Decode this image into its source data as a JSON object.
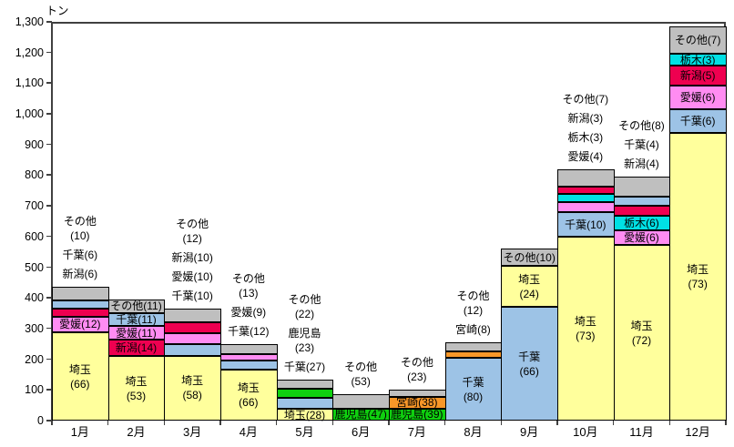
{
  "chart_data": {
    "type": "bar",
    "subtype": "stacked",
    "title": "",
    "unit_label": "トン",
    "xlabel": "",
    "ylabel": "",
    "ylim": [
      0,
      1300
    ],
    "ytick_step": 100,
    "ytick_labels": [
      "0",
      "100",
      "200",
      "300",
      "400",
      "500",
      "600",
      "700",
      "800",
      "900",
      "1,000",
      "1,100",
      "1,200",
      "1,300"
    ],
    "grid": false,
    "legend": "none",
    "note": "segment labels show percent share of monthly total; bar height is total tons (estimated from axis)",
    "categories": [
      "1月",
      "2月",
      "3月",
      "4月",
      "5月",
      "6月",
      "7月",
      "8月",
      "9月",
      "10月",
      "11月",
      "12月"
    ],
    "colors": {
      "埼玉": "#ffff9c",
      "千葉": "#9dc3e6",
      "新潟": "#ee0050",
      "愛媛": "#ff8cf2",
      "栃木": "#00e0e4",
      "鹿児島": "#0fd00f",
      "宮崎": "#f89728",
      "その他": "#bfbfbf"
    },
    "months": [
      {
        "category": "1月",
        "total_tons": 435,
        "segments": [
          {
            "name": "埼玉",
            "pct": 66,
            "lines": [
              "埼玉",
              "(66)"
            ],
            "placement": "inside"
          },
          {
            "name": "愛媛",
            "pct": 12,
            "lines": [
              "愛媛(12)"
            ],
            "placement": "inside"
          },
          {
            "name": "新潟",
            "pct": 6,
            "lines": [
              "新潟(6)"
            ],
            "placement": "outside"
          },
          {
            "name": "千葉",
            "pct": 6,
            "lines": [
              "千葉(6)"
            ],
            "placement": "outside"
          },
          {
            "name": "その他",
            "pct": 10,
            "lines": [
              "その他",
              "(10)"
            ],
            "placement": "outside"
          }
        ]
      },
      {
        "category": "2月",
        "total_tons": 395,
        "segments": [
          {
            "name": "埼玉",
            "pct": 53,
            "lines": [
              "埼玉",
              "(53)"
            ],
            "placement": "inside"
          },
          {
            "name": "新潟",
            "pct": 14,
            "lines": [
              "新潟(14)"
            ],
            "placement": "inside"
          },
          {
            "name": "愛媛",
            "pct": 11,
            "lines": [
              "愛媛(11)"
            ],
            "placement": "inside"
          },
          {
            "name": "千葉",
            "pct": 11,
            "lines": [
              "千葉(11)"
            ],
            "placement": "inside"
          },
          {
            "name": "その他",
            "pct": 11,
            "lines": [
              "その他(11)"
            ],
            "placement": "inside"
          }
        ]
      },
      {
        "category": "3月",
        "total_tons": 365,
        "segments": [
          {
            "name": "埼玉",
            "pct": 58,
            "lines": [
              "埼玉",
              "(58)"
            ],
            "placement": "inside"
          },
          {
            "name": "千葉",
            "pct": 10,
            "lines": [
              "千葉(10)"
            ],
            "placement": "outside"
          },
          {
            "name": "愛媛",
            "pct": 10,
            "lines": [
              "愛媛(10)"
            ],
            "placement": "outside"
          },
          {
            "name": "新潟",
            "pct": 10,
            "lines": [
              "新潟(10)"
            ],
            "placement": "outside"
          },
          {
            "name": "その他",
            "pct": 12,
            "lines": [
              "その他",
              "(12)"
            ],
            "placement": "outside"
          }
        ]
      },
      {
        "category": "4月",
        "total_tons": 250,
        "segments": [
          {
            "name": "埼玉",
            "pct": 66,
            "lines": [
              "埼玉",
              "(66)"
            ],
            "placement": "inside"
          },
          {
            "name": "千葉",
            "pct": 12,
            "lines": [
              "千葉(12)"
            ],
            "placement": "outside"
          },
          {
            "name": "愛媛",
            "pct": 9,
            "lines": [
              "愛媛(9)"
            ],
            "placement": "outside"
          },
          {
            "name": "その他",
            "pct": 13,
            "lines": [
              "その他",
              "(13)"
            ],
            "placement": "outside"
          }
        ]
      },
      {
        "category": "5月",
        "total_tons": 133,
        "segments": [
          {
            "name": "埼玉",
            "pct": 28,
            "lines": [
              "埼玉(28)"
            ],
            "placement": "inside"
          },
          {
            "name": "千葉",
            "pct": 27,
            "lines": [
              "千葉(27)"
            ],
            "placement": "outside"
          },
          {
            "name": "鹿児島",
            "pct": 23,
            "lines": [
              "鹿児島",
              "(23)"
            ],
            "placement": "outside"
          },
          {
            "name": "その他",
            "pct": 22,
            "lines": [
              "その他",
              "(22)"
            ],
            "placement": "outside"
          }
        ]
      },
      {
        "category": "6月",
        "total_tons": 85,
        "segments": [
          {
            "name": "鹿児島",
            "pct": 47,
            "lines": [
              "鹿児島(47)"
            ],
            "placement": "inside"
          },
          {
            "name": "その他",
            "pct": 53,
            "lines": [
              "その他",
              "(53)"
            ],
            "placement": "outside"
          }
        ]
      },
      {
        "category": "7月",
        "total_tons": 100,
        "segments": [
          {
            "name": "鹿児島",
            "pct": 39,
            "lines": [
              "鹿児島(39)"
            ],
            "placement": "inside"
          },
          {
            "name": "宮崎",
            "pct": 38,
            "lines": [
              "宮崎(38)"
            ],
            "placement": "inside"
          },
          {
            "name": "その他",
            "pct": 23,
            "lines": [
              "その他",
              "(23)"
            ],
            "placement": "outside"
          }
        ]
      },
      {
        "category": "8月",
        "total_tons": 255,
        "segments": [
          {
            "name": "千葉",
            "pct": 80,
            "lines": [
              "千葉",
              "(80)"
            ],
            "placement": "inside"
          },
          {
            "name": "宮崎",
            "pct": 8,
            "lines": [
              "宮崎(8)"
            ],
            "placement": "outside"
          },
          {
            "name": "その他",
            "pct": 12,
            "lines": [
              "その他",
              "(12)"
            ],
            "placement": "outside"
          }
        ]
      },
      {
        "category": "9月",
        "total_tons": 560,
        "segments": [
          {
            "name": "千葉",
            "pct": 66,
            "lines": [
              "千葉",
              "(66)"
            ],
            "placement": "inside"
          },
          {
            "name": "埼玉",
            "pct": 24,
            "lines": [
              "埼玉",
              "(24)"
            ],
            "placement": "inside"
          },
          {
            "name": "その他",
            "pct": 10,
            "lines": [
              "その他(10)"
            ],
            "placement": "inside"
          }
        ]
      },
      {
        "category": "10月",
        "total_tons": 820,
        "segments": [
          {
            "name": "埼玉",
            "pct": 73,
            "lines": [
              "埼玉",
              "(73)"
            ],
            "placement": "inside"
          },
          {
            "name": "千葉",
            "pct": 10,
            "lines": [
              "千葉(10)"
            ],
            "placement": "inside"
          },
          {
            "name": "愛媛",
            "pct": 4,
            "lines": [
              "愛媛(4)"
            ],
            "placement": "outside"
          },
          {
            "name": "栃木",
            "pct": 3,
            "lines": [
              "栃木(3)"
            ],
            "placement": "outside"
          },
          {
            "name": "新潟",
            "pct": 3,
            "lines": [
              "新潟(3)"
            ],
            "placement": "outside"
          },
          {
            "name": "その他",
            "pct": 7,
            "lines": [
              "その他(7)"
            ],
            "placement": "outside"
          }
        ]
      },
      {
        "category": "11月",
        "total_tons": 795,
        "segments": [
          {
            "name": "埼玉",
            "pct": 72,
            "lines": [
              "埼玉",
              "(72)"
            ],
            "placement": "inside"
          },
          {
            "name": "愛媛",
            "pct": 6,
            "lines": [
              "愛媛(6)"
            ],
            "placement": "inside"
          },
          {
            "name": "栃木",
            "pct": 6,
            "lines": [
              "栃木(6)"
            ],
            "placement": "inside"
          },
          {
            "name": "新潟",
            "pct": 4,
            "lines": [
              "新潟(4)"
            ],
            "placement": "outside"
          },
          {
            "name": "千葉",
            "pct": 4,
            "lines": [
              "千葉(4)"
            ],
            "placement": "outside"
          },
          {
            "name": "その他",
            "pct": 8,
            "lines": [
              "その他(8)"
            ],
            "placement": "outside"
          }
        ]
      },
      {
        "category": "12月",
        "total_tons": 1285,
        "segments": [
          {
            "name": "埼玉",
            "pct": 73,
            "lines": [
              "埼玉",
              "(73)"
            ],
            "placement": "inside"
          },
          {
            "name": "千葉",
            "pct": 6,
            "lines": [
              "千葉(6)"
            ],
            "placement": "inside"
          },
          {
            "name": "愛媛",
            "pct": 6,
            "lines": [
              "愛媛(6)"
            ],
            "placement": "inside"
          },
          {
            "name": "新潟",
            "pct": 5,
            "lines": [
              "新潟(5)"
            ],
            "placement": "inside"
          },
          {
            "name": "栃木",
            "pct": 3,
            "lines": [
              "栃木(3)"
            ],
            "placement": "inside"
          },
          {
            "name": "その他",
            "pct": 7,
            "lines": [
              "その他(7)"
            ],
            "placement": "inside"
          }
        ]
      }
    ]
  }
}
